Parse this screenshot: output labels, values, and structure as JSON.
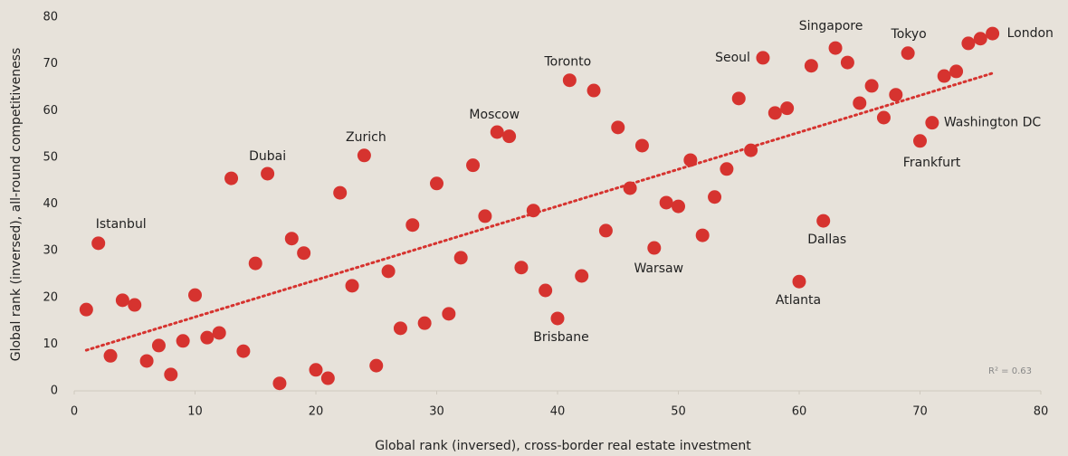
{
  "chart_data": {
    "type": "scatter",
    "x_label": "Global rank (inversed), cross-border real estate investment",
    "y_label": "Global rank (inversed), all-round competitiveness",
    "annotation": "R² = 0.63",
    "color": "#d6332f",
    "xlim": [
      0,
      80
    ],
    "ylim": [
      0,
      80
    ],
    "xticks": [
      0,
      10,
      20,
      30,
      40,
      50,
      60,
      70,
      80
    ],
    "yticks": [
      0,
      10,
      20,
      30,
      40,
      50,
      60,
      70,
      80
    ],
    "grid": false,
    "x": [
      1,
      2,
      3,
      4,
      5,
      6,
      7,
      8,
      9,
      10,
      11,
      12,
      13,
      14,
      15,
      16,
      17,
      18,
      19,
      20,
      21,
      22,
      23,
      24,
      25,
      26,
      27,
      28,
      29,
      30,
      31,
      32,
      33,
      34,
      35,
      36,
      37,
      38,
      39,
      40,
      41,
      42,
      43,
      44,
      45,
      46,
      47,
      48,
      49,
      50,
      51,
      52,
      53,
      54,
      55,
      56,
      57,
      58,
      59,
      60,
      61,
      62,
      63,
      64,
      65,
      66,
      67,
      68,
      69,
      70,
      71,
      72,
      73,
      74,
      75,
      76
    ],
    "values": [
      17.4,
      31.6,
      7.5,
      19.4,
      18.4,
      6.4,
      9.7,
      3.5,
      10.7,
      20.5,
      11.4,
      12.4,
      45.5,
      8.5,
      27.3,
      46.5,
      1.6,
      32.6,
      29.5,
      4.5,
      2.7,
      42.4,
      22.5,
      50.4,
      5.4,
      25.6,
      13.4,
      35.5,
      14.5,
      44.4,
      16.5,
      28.5,
      48.3,
      37.4,
      55.4,
      54.5,
      26.4,
      38.6,
      21.5,
      15.5,
      66.5,
      24.6,
      64.3,
      34.3,
      56.4,
      43.4,
      52.5,
      30.6,
      40.3,
      39.5,
      49.4,
      33.3,
      41.5,
      47.5,
      62.6,
      51.5,
      71.3,
      59.5,
      60.5,
      23.4,
      69.6,
      36.4,
      73.4,
      70.3,
      61.6,
      65.3,
      58.5,
      63.4,
      72.3,
      53.5,
      57.4,
      67.4,
      68.4,
      74.4,
      75.4,
      76.5
    ],
    "labels": [
      null,
      "Istanbul",
      null,
      null,
      null,
      null,
      null,
      null,
      null,
      null,
      null,
      null,
      null,
      null,
      null,
      "Dubai",
      null,
      null,
      null,
      null,
      null,
      null,
      null,
      "Zurich",
      null,
      null,
      null,
      null,
      null,
      null,
      null,
      null,
      null,
      null,
      "Moscow",
      null,
      null,
      null,
      null,
      "Brisbane",
      "Toronto",
      null,
      null,
      null,
      null,
      null,
      null,
      "Warsaw",
      null,
      null,
      null,
      null,
      null,
      null,
      null,
      null,
      "Seoul",
      null,
      null,
      "Atlanta",
      null,
      "Dallas",
      "Singapore",
      null,
      null,
      null,
      null,
      null,
      "Tokyo",
      "Frankfurt",
      "Washington DC",
      null,
      null,
      null,
      null,
      "London"
    ],
    "trendline": {
      "x": [
        1,
        76
      ],
      "y": [
        8.7,
        68.0
      ]
    }
  }
}
